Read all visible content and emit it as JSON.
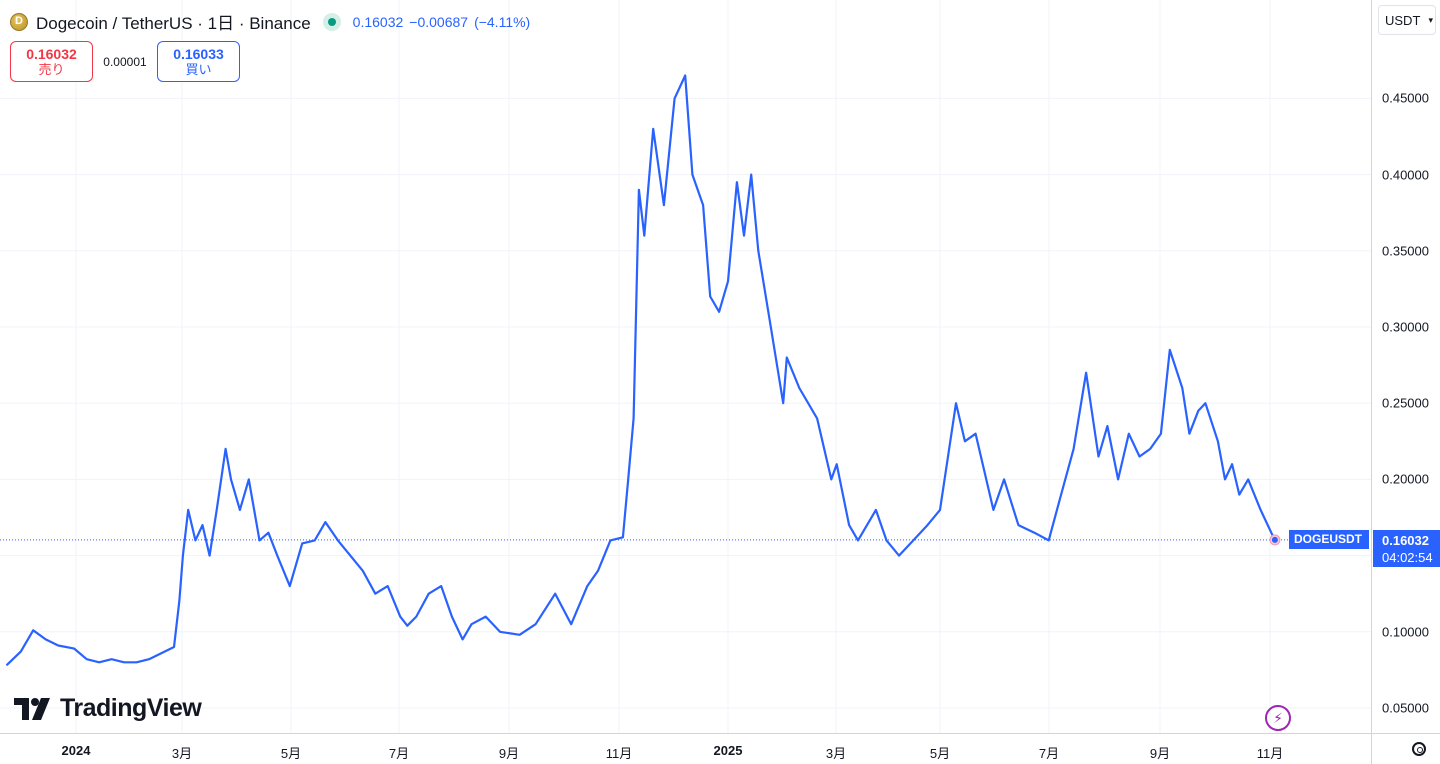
{
  "legend": {
    "symbol_title": "Dogecoin / TetherUS · 1日 · Binance",
    "last": "0.16032",
    "change": "−0.00687",
    "change_pct": "(−4.11%)"
  },
  "trade": {
    "sell_price": "0.16032",
    "sell_label": "売り",
    "spread": "0.00001",
    "buy_price": "0.16033",
    "buy_label": "買い"
  },
  "currency": "USDT",
  "price_ticks": [
    "0.45000",
    "0.40000",
    "0.35000",
    "0.30000",
    "0.25000",
    "0.20000",
    "0.10000",
    "0.05000"
  ],
  "time_ticks": [
    {
      "label": "2024",
      "bold": true
    },
    {
      "label": "3月",
      "bold": false
    },
    {
      "label": "5月",
      "bold": false
    },
    {
      "label": "7月",
      "bold": false
    },
    {
      "label": "9月",
      "bold": false
    },
    {
      "label": "11月",
      "bold": false
    },
    {
      "label": "2025",
      "bold": true
    },
    {
      "label": "3月",
      "bold": false
    },
    {
      "label": "5月",
      "bold": false
    },
    {
      "label": "7月",
      "bold": false
    },
    {
      "label": "9月",
      "bold": false
    },
    {
      "label": "11月",
      "bold": false
    }
  ],
  "last_price_box": {
    "price": "0.16032",
    "countdown": "04:02:54",
    "symbol": "DOGEUSDT"
  },
  "logo_text": "TradingView",
  "colors": {
    "line": "#2962ff",
    "grid": "#f0f3fa",
    "accent": "#2962ff"
  },
  "chart_data": {
    "type": "line",
    "ylim": [
      0.03,
      0.48
    ],
    "x": [
      "2023-11-23",
      "2023-12-01",
      "2023-12-08",
      "2023-12-15",
      "2023-12-22",
      "2023-12-31",
      "2024-01-07",
      "2024-01-14",
      "2024-01-21",
      "2024-01-28",
      "2024-02-04",
      "2024-02-11",
      "2024-02-18",
      "2024-02-25",
      "2024-02-28",
      "2024-03-01",
      "2024-03-04",
      "2024-03-08",
      "2024-03-12",
      "2024-03-16",
      "2024-03-20",
      "2024-03-25",
      "2024-03-28",
      "2024-04-02",
      "2024-04-07",
      "2024-04-13",
      "2024-04-18",
      "2024-04-23",
      "2024-04-30",
      "2024-05-07",
      "2024-05-14",
      "2024-05-20",
      "2024-05-27",
      "2024-06-03",
      "2024-06-10",
      "2024-06-17",
      "2024-06-24",
      "2024-07-01",
      "2024-07-05",
      "2024-07-10",
      "2024-07-17",
      "2024-07-24",
      "2024-07-30",
      "2024-08-05",
      "2024-08-10",
      "2024-08-18",
      "2024-08-26",
      "2024-09-06",
      "2024-09-15",
      "2024-09-26",
      "2024-10-05",
      "2024-10-14",
      "2024-10-20",
      "2024-10-27",
      "2024-11-03",
      "2024-11-06",
      "2024-11-09",
      "2024-11-12",
      "2024-11-15",
      "2024-11-20",
      "2024-11-26",
      "2024-12-02",
      "2024-12-08",
      "2024-12-12",
      "2024-12-18",
      "2024-12-22",
      "2024-12-27",
      "2025-01-01",
      "2025-01-06",
      "2025-01-10",
      "2025-01-14",
      "2025-01-18",
      "2025-01-25",
      "2025-02-01",
      "2025-02-03",
      "2025-02-10",
      "2025-02-20",
      "2025-02-28",
      "2025-03-03",
      "2025-03-10",
      "2025-03-15",
      "2025-03-25",
      "2025-03-31",
      "2025-04-07",
      "2025-04-15",
      "2025-04-23",
      "2025-04-30",
      "2025-05-09",
      "2025-05-14",
      "2025-05-20",
      "2025-05-30",
      "2025-06-05",
      "2025-06-13",
      "2025-06-22",
      "2025-06-30",
      "2025-07-07",
      "2025-07-14",
      "2025-07-21",
      "2025-07-28",
      "2025-08-02",
      "2025-08-08",
      "2025-08-14",
      "2025-08-20",
      "2025-08-26",
      "2025-09-01",
      "2025-09-06",
      "2025-09-13",
      "2025-09-17",
      "2025-09-22",
      "2025-09-26",
      "2025-10-03",
      "2025-10-07",
      "2025-10-11",
      "2025-10-15",
      "2025-10-20",
      "2025-10-27",
      "2025-11-02",
      "2025-11-04"
    ],
    "y": [
      0.078,
      0.087,
      0.101,
      0.095,
      0.091,
      0.089,
      0.082,
      0.08,
      0.082,
      0.08,
      0.08,
      0.082,
      0.086,
      0.09,
      0.12,
      0.15,
      0.18,
      0.16,
      0.17,
      0.15,
      0.18,
      0.22,
      0.2,
      0.18,
      0.2,
      0.16,
      0.165,
      0.15,
      0.13,
      0.158,
      0.16,
      0.172,
      0.16,
      0.15,
      0.14,
      0.125,
      0.13,
      0.11,
      0.104,
      0.11,
      0.125,
      0.13,
      0.11,
      0.095,
      0.105,
      0.11,
      0.1,
      0.098,
      0.105,
      0.125,
      0.105,
      0.13,
      0.14,
      0.16,
      0.162,
      0.2,
      0.24,
      0.39,
      0.36,
      0.43,
      0.38,
      0.45,
      0.465,
      0.4,
      0.38,
      0.32,
      0.31,
      0.33,
      0.395,
      0.36,
      0.4,
      0.35,
      0.3,
      0.25,
      0.28,
      0.26,
      0.24,
      0.2,
      0.21,
      0.17,
      0.16,
      0.18,
      0.16,
      0.15,
      0.16,
      0.17,
      0.18,
      0.25,
      0.225,
      0.23,
      0.18,
      0.2,
      0.17,
      0.165,
      0.16,
      0.19,
      0.22,
      0.27,
      0.215,
      0.235,
      0.2,
      0.23,
      0.215,
      0.22,
      0.23,
      0.285,
      0.26,
      0.23,
      0.245,
      0.25,
      0.225,
      0.2,
      0.21,
      0.19,
      0.2,
      0.18,
      0.165,
      0.16
    ]
  }
}
